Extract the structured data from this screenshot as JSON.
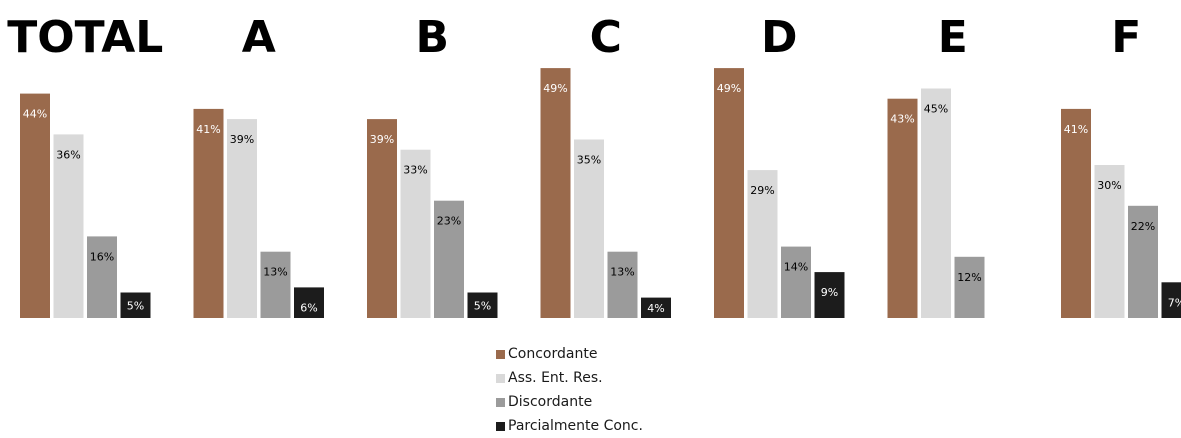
{
  "chart_data": {
    "type": "bar",
    "categories": [
      "TOTAL",
      "A",
      "B",
      "C",
      "D",
      "E",
      "F"
    ],
    "unit": "%",
    "series": [
      {
        "name": "Concordante",
        "color": "#9a6a4c",
        "label_color": "#ffffff",
        "values": [
          44,
          41,
          39,
          49,
          49,
          43,
          41
        ]
      },
      {
        "name": "Ass. Ent. Res.",
        "color": "#d9d9d9",
        "label_color": "#000000",
        "values": [
          36,
          39,
          33,
          35,
          29,
          45,
          30
        ]
      },
      {
        "name": "Discordante",
        "color": "#9b9b9b",
        "label_color": "#000000",
        "values": [
          16,
          13,
          23,
          13,
          14,
          12,
          22
        ]
      },
      {
        "name": "Parcialmente Conc.",
        "color": "#1c1c1c",
        "label_color": "#ffffff",
        "values": [
          5,
          6,
          5,
          4,
          9,
          null,
          7
        ]
      }
    ],
    "ylim": [
      0,
      50
    ],
    "legend": "bottom-center",
    "grid": false
  }
}
